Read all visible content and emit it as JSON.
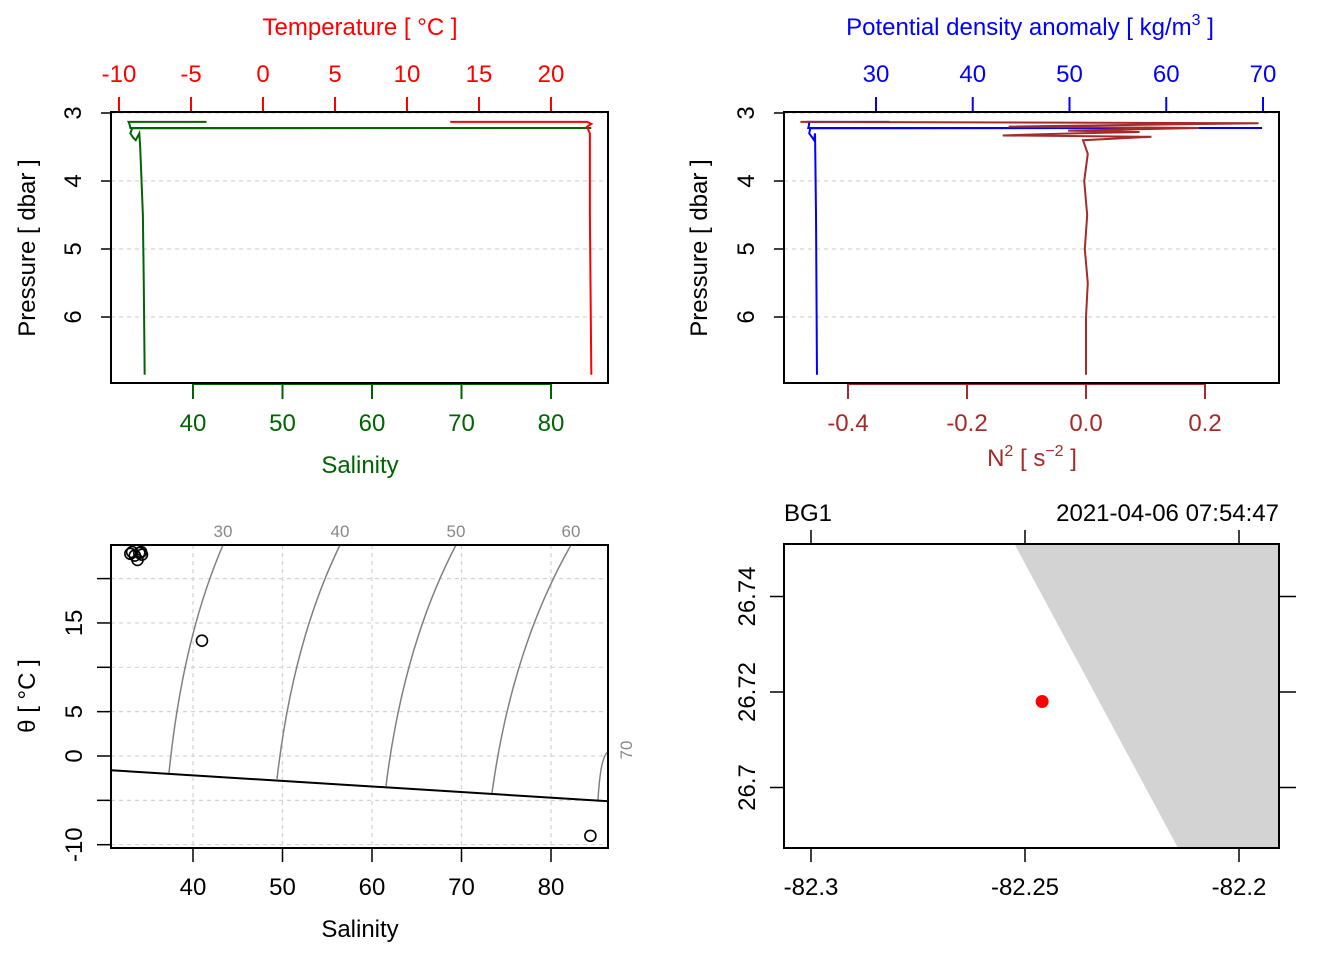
{
  "chart_data": [
    {
      "type": "line",
      "panel": "profile-salinity-temperature",
      "ylabel": "Pressure [ dbar ]",
      "yticks": [
        "3",
        "4",
        "5",
        "6"
      ],
      "ylim": [
        3,
        7
      ],
      "xlabel_bottom": "Salinity",
      "xticks_bottom": [
        "40",
        "50",
        "60",
        "70",
        "80"
      ],
      "xlabel_top": "Temperature [ °C ]",
      "xticks_top": [
        "-10",
        "-5",
        "0",
        "5",
        "10",
        "15",
        "20"
      ],
      "colors": {
        "salinity": "#006400",
        "temperature": "#ff0000"
      },
      "series": [
        {
          "name": "Salinity",
          "points": [
            [
              3.13,
              41.5
            ],
            [
              3.13,
              32.8
            ],
            [
              3.16,
              32.9
            ],
            [
              3.22,
              33.0
            ],
            [
              3.22,
              84.5
            ],
            [
              3.225,
              33.2
            ],
            [
              3.3,
              33.0
            ],
            [
              3.36,
              33.3
            ],
            [
              3.4,
              33.6
            ],
            [
              3.3,
              34.0
            ],
            [
              3.5,
              34.1
            ],
            [
              4.5,
              34.4
            ],
            [
              5.5,
              34.5
            ],
            [
              6.85,
              34.6
            ]
          ]
        },
        {
          "name": "Temperature",
          "points": [
            [
              3.13,
              13.0
            ],
            [
              3.13,
              22.5
            ],
            [
              3.16,
              22.8
            ],
            [
              3.2,
              22.5
            ],
            [
              3.3,
              22.7
            ],
            [
              4.5,
              22.7
            ],
            [
              6.85,
              22.8
            ]
          ]
        }
      ]
    },
    {
      "type": "line",
      "panel": "profile-density-n2",
      "ylabel": "Pressure [ dbar ]",
      "yticks": [
        "3",
        "4",
        "5",
        "6"
      ],
      "ylim": [
        3,
        7
      ],
      "xlabel_top": "Potential density anomaly [ kg/m",
      "xlabel_top_sup": "3",
      "xlabel_top_end": " ]",
      "xticks_top": [
        "30",
        "40",
        "50",
        "60",
        "70"
      ],
      "xlabel_bottom": "N",
      "xlabel_bottom_sup": "2",
      "xlabel_bottom_mid": " [ s",
      "xlabel_bottom_sup2": "−2",
      "xlabel_bottom_end": " ]",
      "xticks_bottom": [
        "-0.4",
        "-0.2",
        "0.0",
        "0.2"
      ],
      "colors": {
        "density": "#0000ff",
        "n2": "#a52a2a"
      },
      "series": [
        {
          "name": "sigma",
          "points": [
            [
              3.13,
              31.4
            ],
            [
              3.13,
              23.0
            ],
            [
              3.16,
              23.1
            ],
            [
              3.22,
              23.0
            ],
            [
              3.22,
              69.9
            ],
            [
              3.225,
              23.2
            ],
            [
              3.3,
              23.1
            ],
            [
              3.36,
              23.4
            ],
            [
              3.4,
              23.6
            ],
            [
              3.3,
              23.7
            ],
            [
              4.5,
              23.8
            ],
            [
              6.85,
              23.9
            ]
          ]
        },
        {
          "name": "N2",
          "points": [
            [
              3.13,
              -0.48
            ],
            [
              3.15,
              0.29
            ],
            [
              3.2,
              -0.13
            ],
            [
              3.22,
              0.19
            ],
            [
              3.26,
              -0.03
            ],
            [
              3.28,
              0.09
            ],
            [
              3.3,
              -0.02
            ],
            [
              3.33,
              -0.14
            ],
            [
              3.35,
              0.11
            ],
            [
              3.4,
              -0.005
            ],
            [
              3.6,
              0.003
            ],
            [
              4.0,
              -0.003
            ],
            [
              4.5,
              0.002
            ],
            [
              5.0,
              -0.002
            ],
            [
              5.5,
              0.003
            ],
            [
              6.0,
              0.0
            ],
            [
              6.85,
              0.0
            ]
          ]
        }
      ]
    },
    {
      "type": "scatter",
      "panel": "ts-diagram",
      "xlabel": "Salinity",
      "ylabel": "θ [ °C ]",
      "xticks": [
        "40",
        "50",
        "60",
        "70",
        "80"
      ],
      "yticks": [
        "-10",
        "0",
        "5",
        "15"
      ],
      "isopycnals": [
        "30",
        "40",
        "50",
        "60",
        "70"
      ],
      "points": [
        [
          33.0,
          22.8
        ],
        [
          33.5,
          22.6
        ],
        [
          34.0,
          22.9
        ],
        [
          34.3,
          22.7
        ],
        [
          33.8,
          22.1
        ],
        [
          34.2,
          23.0
        ],
        [
          33.2,
          23.0
        ],
        [
          41.0,
          13.0
        ],
        [
          84.4,
          -9.0
        ]
      ],
      "freezing_line": [
        [
          30.8,
          -1.6
        ],
        [
          86.4,
          -5.1
        ]
      ]
    },
    {
      "type": "map",
      "panel": "station-map",
      "station": "BG1",
      "datetime": "2021-04-06 07:54:47",
      "xticks": [
        "-82.3",
        "-82.25",
        "-82.2"
      ],
      "yticks": [
        "26.7",
        "26.72",
        "26.74"
      ],
      "station_position": [
        -82.246,
        26.718
      ],
      "land_color": "#d3d3d3",
      "marker_color": "#ff0000"
    }
  ]
}
